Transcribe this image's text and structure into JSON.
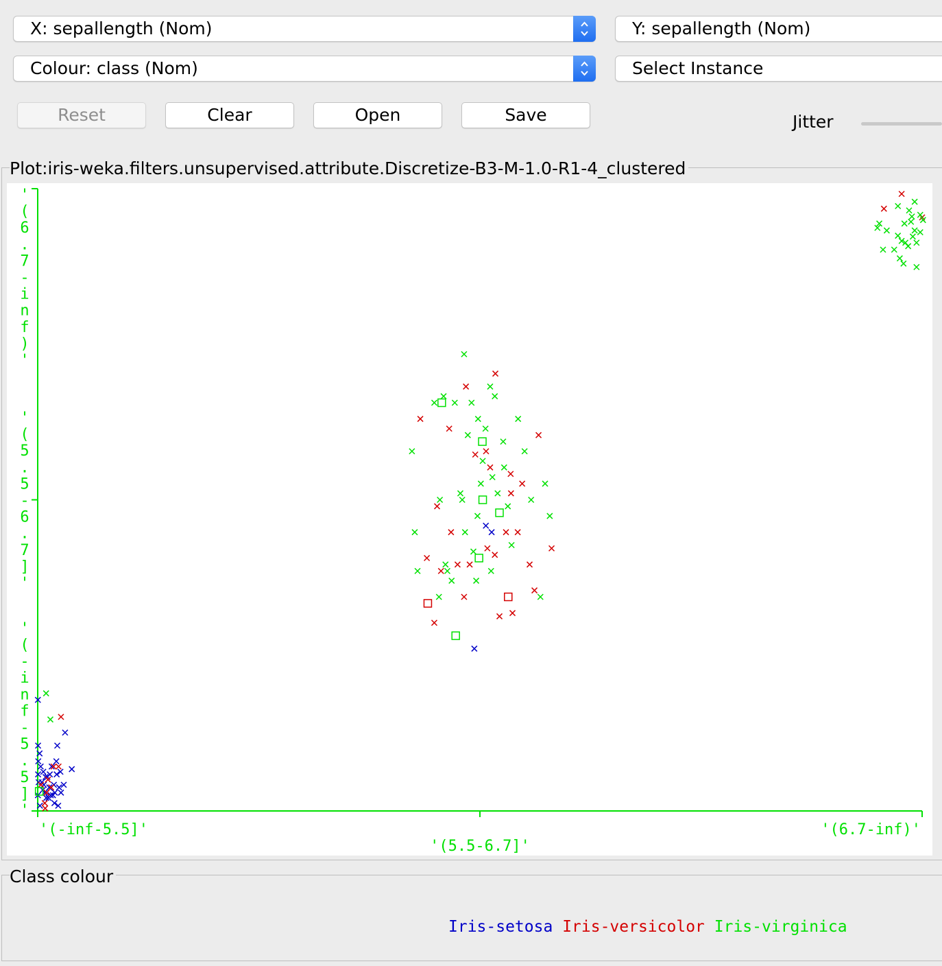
{
  "controls": {
    "x_select": "X: sepallength (Nom)",
    "y_select": "Y: sepallength (Nom)",
    "colour_select": "Colour: class (Nom)",
    "instance_select": "Select Instance"
  },
  "buttons": {
    "reset": "Reset",
    "clear": "Clear",
    "open": "Open",
    "save": "Save"
  },
  "jitter": {
    "label": "Jitter",
    "value": 0
  },
  "plot": {
    "title": "Plot:iris-weka.filters.unsupervised.attribute.Discretize-B3-M-1.0-R1-4_clustered"
  },
  "class_colour": {
    "title": "Class colour",
    "classes": [
      {
        "name": "Iris-setosa",
        "color": "#0000c8"
      },
      {
        "name": "Iris-versicolor",
        "color": "#d40000"
      },
      {
        "name": "Iris-virginica",
        "color": "#00e000"
      }
    ]
  },
  "chart_data": {
    "type": "scatter",
    "title": "",
    "xlabel": "",
    "ylabel": "",
    "axis_color": "#00e000",
    "x_categories": [
      "'(-inf-5.5]'",
      "'(5.5-6.7]'",
      "'(6.7-inf)'"
    ],
    "y_categories": [
      "'(-inf-5.5]'",
      "'(5.5-6.7]'",
      "'(6.7-inf)'"
    ],
    "grid": false,
    "legend": "bottom",
    "marker_shapes": {
      "cross": "instance",
      "square": "mismatch"
    },
    "series": [
      {
        "name": "Iris-setosa",
        "color": "#0000c8",
        "points": [
          [
            0.01,
            0.15,
            "x"
          ],
          [
            0.02,
            0.5,
            "x"
          ],
          [
            0.03,
            0.62,
            "x"
          ],
          [
            0.02,
            0.72,
            "x"
          ],
          [
            0.05,
            0.78,
            "x"
          ],
          [
            0.01,
            0.88,
            "x"
          ],
          [
            0.1,
            0.56,
            "x"
          ],
          [
            0.16,
            0.66,
            "x"
          ],
          [
            0.22,
            0.78,
            "x"
          ],
          [
            0.27,
            0.84,
            "x"
          ],
          [
            0.33,
            0.8,
            "x"
          ],
          [
            0.38,
            0.86,
            "x"
          ],
          [
            0.42,
            0.74,
            "x"
          ],
          [
            0.46,
            0.9,
            "x"
          ],
          [
            0.58,
            0.9,
            "x"
          ],
          [
            0.62,
            0.82,
            "x"
          ],
          [
            0.7,
            0.88,
            "x"
          ],
          [
            0.75,
            0.66,
            "x"
          ],
          [
            0.82,
            0.88,
            "x"
          ],
          [
            0.87,
            0.8,
            "x"
          ],
          [
            0.92,
            0.86,
            "x"
          ],
          [
            1.0,
            0.62,
            "x"
          ],
          [
            1.02,
            0.72,
            "x"
          ],
          [
            1.05,
            0.5,
            "x"
          ],
          [
            1.15,
            0.82,
            "x"
          ],
          [
            1.22,
            0.7,
            "x"
          ],
          [
            1.25,
            0.86,
            "x"
          ],
          [
            1.4,
            0.8,
            "x"
          ],
          [
            1.47,
            0.4,
            "x"
          ],
          [
            1.83,
            0.68,
            "x"
          ],
          [
            0.3,
            0.7,
            "x"
          ],
          [
            0.52,
            0.74,
            "x"
          ],
          [
            0.65,
            0.72,
            "x"
          ],
          [
            0.9,
            0.94,
            "x"
          ],
          [
            0.12,
            0.96,
            "x"
          ],
          [
            1.1,
            0.96,
            "x"
          ],
          [
            23.45,
            0.96,
            "x"
          ],
          [
            24.07,
            0.58,
            "x"
          ],
          [
            24.38,
            0.6,
            "x"
          ]
        ]
      },
      {
        "name": "Iris-versicolor",
        "color": "#d40000",
        "points": [
          [
            0.18,
            0.8,
            "x"
          ],
          [
            0.38,
            0.94,
            "x"
          ],
          [
            0.4,
            0.98,
            "x"
          ],
          [
            0.55,
            0.76,
            "x"
          ],
          [
            0.72,
            0.82,
            "x"
          ],
          [
            0.85,
            0.66,
            "x"
          ],
          [
            1.12,
            0.66,
            "x"
          ],
          [
            1.25,
            0.28,
            "x"
          ],
          [
            0.48,
            0.86,
            "x"
          ],
          [
            20.55,
            0.25,
            "x"
          ],
          [
            20.9,
            0.68,
            "x"
          ],
          [
            21.3,
            0.88,
            "x"
          ],
          [
            21.45,
            0.52,
            "x"
          ],
          [
            21.66,
            0.72,
            "x"
          ],
          [
            22.1,
            0.28,
            "x"
          ],
          [
            22.2,
            0.6,
            "x"
          ],
          [
            22.55,
            0.7,
            "x"
          ],
          [
            22.9,
            0.8,
            "x"
          ],
          [
            23.0,
            0.15,
            "x"
          ],
          [
            23.2,
            0.7,
            "x"
          ],
          [
            23.5,
            0.36,
            "x"
          ],
          [
            24.08,
            0.35,
            "x"
          ],
          [
            24.15,
            0.65,
            "x"
          ],
          [
            24.3,
            0.4,
            "x"
          ],
          [
            24.55,
            0.67,
            "x"
          ],
          [
            24.58,
            0.11,
            "x"
          ],
          [
            24.8,
            0.86,
            "x"
          ],
          [
            25.15,
            0.6,
            "x"
          ],
          [
            25.4,
            0.42,
            "x"
          ],
          [
            25.42,
            0.48,
            "x"
          ],
          [
            25.5,
            0.85,
            "x"
          ],
          [
            25.78,
            0.6,
            "x"
          ],
          [
            26.02,
            0.45,
            "x"
          ],
          [
            26.42,
            0.7,
            "x"
          ],
          [
            26.68,
            0.78,
            "x"
          ],
          [
            26.9,
            0.3,
            "x"
          ],
          [
            27.6,
            0.65,
            "x"
          ],
          [
            20.95,
            0.82,
            "s"
          ],
          [
            25.27,
            0.8,
            "s"
          ],
          [
            45.45,
            0.23,
            "x"
          ],
          [
            46.4,
            0.06,
            "x"
          ],
          [
            47.5,
            0.33,
            "x"
          ]
        ]
      },
      {
        "name": "Iris-virginica",
        "color": "#00e000",
        "points": [
          [
            0.08,
            0.85,
            "s"
          ],
          [
            0.45,
            0.1,
            "x"
          ],
          [
            0.68,
            0.3,
            "x"
          ],
          [
            20.1,
            0.35,
            "x"
          ],
          [
            20.25,
            0.6,
            "x"
          ],
          [
            20.4,
            0.72,
            "x"
          ],
          [
            21.3,
            0.2,
            "x"
          ],
          [
            21.55,
            0.8,
            "x"
          ],
          [
            21.6,
            0.5,
            "x"
          ],
          [
            21.8,
            0.18,
            "x"
          ],
          [
            22.0,
            0.72,
            "x"
          ],
          [
            22.23,
            0.75,
            "x"
          ],
          [
            22.4,
            0.2,
            "x"
          ],
          [
            22.7,
            0.48,
            "x"
          ],
          [
            22.9,
            0.05,
            "x"
          ],
          [
            22.95,
            0.6,
            "x"
          ],
          [
            23.1,
            0.3,
            "x"
          ],
          [
            23.3,
            0.2,
            "x"
          ],
          [
            23.4,
            0.66,
            "x"
          ],
          [
            23.55,
            0.75,
            "x"
          ],
          [
            23.62,
            0.55,
            "x"
          ],
          [
            23.65,
            0.25,
            "x"
          ],
          [
            23.8,
            0.45,
            "x"
          ],
          [
            23.9,
            0.38,
            "x"
          ],
          [
            24.05,
            0.28,
            "x"
          ],
          [
            24.3,
            0.15,
            "x"
          ],
          [
            24.35,
            0.72,
            "x"
          ],
          [
            24.42,
            0.43,
            "x"
          ],
          [
            24.55,
            0.18,
            "x"
          ],
          [
            24.7,
            0.48,
            "x"
          ],
          [
            25.0,
            0.32,
            "x"
          ],
          [
            25.05,
            0.4,
            "x"
          ],
          [
            25.25,
            0.52,
            "x"
          ],
          [
            25.45,
            0.64,
            "x"
          ],
          [
            25.8,
            0.25,
            "x"
          ],
          [
            26.15,
            0.35,
            "x"
          ],
          [
            26.5,
            0.5,
            "x"
          ],
          [
            27.0,
            0.8,
            "x"
          ],
          [
            27.25,
            0.45,
            "x"
          ],
          [
            27.5,
            0.55,
            "x"
          ],
          [
            22.8,
            0.5,
            "x"
          ],
          [
            21.9,
            0.7,
            "x"
          ],
          [
            21.7,
            0.2,
            "s"
          ],
          [
            22.45,
            0.92,
            "s"
          ],
          [
            23.88,
            0.32,
            "s"
          ],
          [
            23.9,
            0.5,
            "s"
          ],
          [
            24.8,
            0.54,
            "s"
          ],
          [
            23.7,
            0.68,
            "s"
          ],
          [
            45.1,
            0.45,
            "x"
          ],
          [
            45.2,
            0.4,
            "x"
          ],
          [
            45.4,
            0.7,
            "x"
          ],
          [
            45.6,
            0.48,
            "x"
          ],
          [
            46.0,
            0.7,
            "x"
          ],
          [
            46.2,
            0.54,
            "x"
          ],
          [
            46.4,
            0.6,
            "x"
          ],
          [
            46.6,
            0.62,
            "x"
          ],
          [
            46.75,
            0.66,
            "x"
          ],
          [
            46.9,
            0.38,
            "x"
          ],
          [
            47.0,
            0.55,
            "x"
          ],
          [
            47.1,
            0.48,
            "x"
          ],
          [
            47.2,
            0.62,
            "x"
          ],
          [
            47.4,
            0.3,
            "x"
          ],
          [
            47.55,
            0.36,
            "x"
          ],
          [
            46.2,
            0.2,
            "x"
          ],
          [
            46.8,
            0.25,
            "x"
          ],
          [
            47.1,
            0.15,
            "x"
          ],
          [
            46.3,
            0.8,
            "x"
          ],
          [
            47.2,
            0.9,
            "x"
          ],
          [
            46.5,
            0.86,
            "x"
          ],
          [
            47.4,
            0.5,
            "x"
          ],
          [
            46.55,
            0.4,
            "x"
          ],
          [
            46.95,
            0.32,
            "x"
          ]
        ]
      }
    ]
  }
}
